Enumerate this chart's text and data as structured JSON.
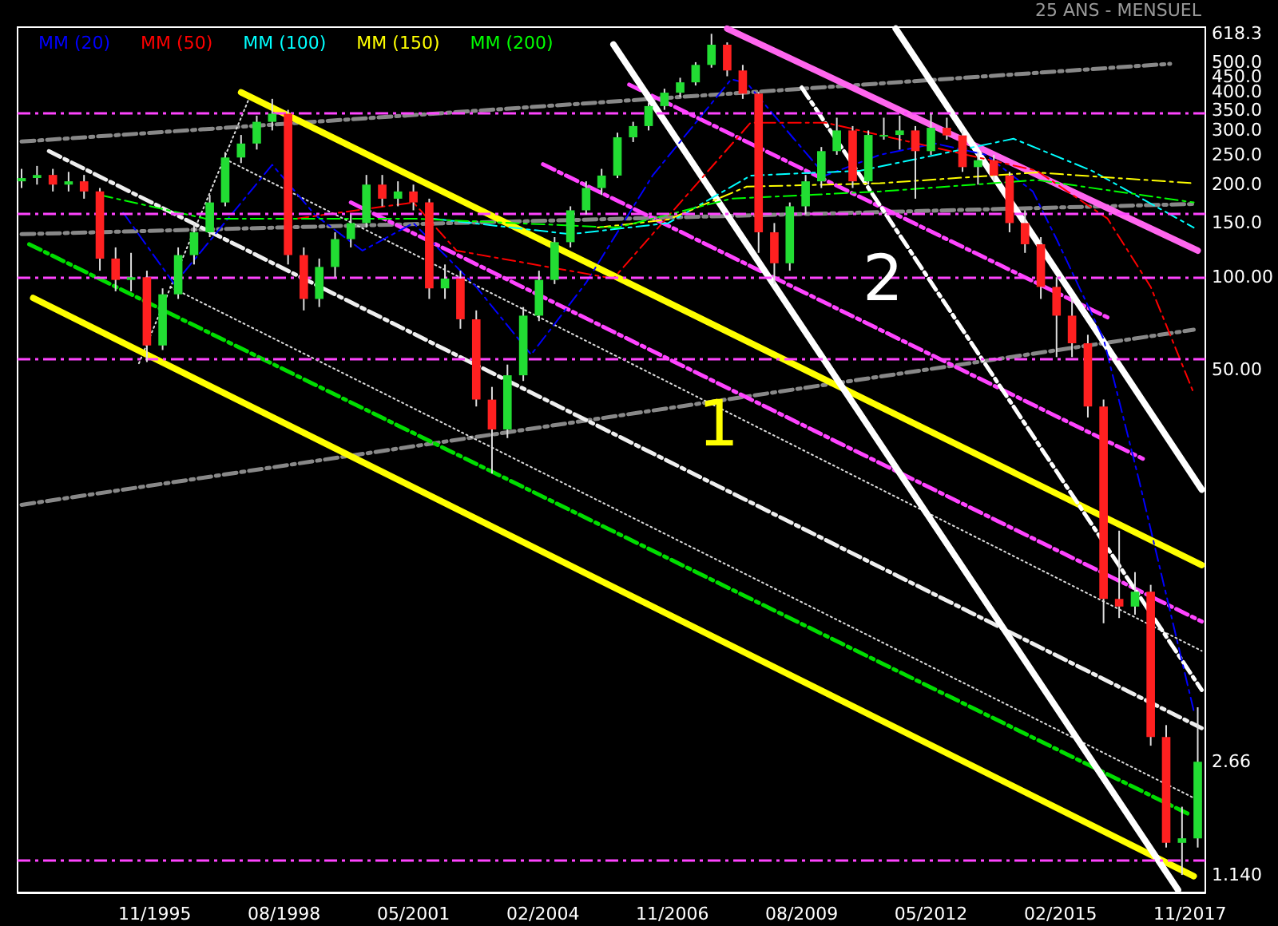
{
  "chart_data": {
    "type": "candlestick",
    "subtitle": "25 ANS - MENSUEL",
    "log": true,
    "grid": false,
    "legend": "top left",
    "marker": "none",
    "xlim": [
      "1992-12",
      "2018-03"
    ],
    "xticks": [
      {
        "value": "1995-11",
        "label": "11/1995"
      },
      {
        "value": "1998-08",
        "label": "08/1998"
      },
      {
        "value": "2001-05",
        "label": "05/2001"
      },
      {
        "value": "2004-02",
        "label": "02/2004"
      },
      {
        "value": "2006-11",
        "label": "11/2006"
      },
      {
        "value": "2009-08",
        "label": "08/2009"
      },
      {
        "value": "2012-05",
        "label": "05/2012"
      },
      {
        "value": "2015-02",
        "label": "02/2015"
      },
      {
        "value": "2017-11",
        "label": "11/2017"
      }
    ],
    "ylim": [
      1,
      650
    ],
    "yticks": [
      {
        "value": 618.3,
        "label": "618.3"
      },
      {
        "value": 500,
        "label": "500.0"
      },
      {
        "value": 450,
        "label": "450.0"
      },
      {
        "value": 400,
        "label": "400.0"
      },
      {
        "value": 350,
        "label": "350.0"
      },
      {
        "value": 300,
        "label": "300.0"
      },
      {
        "value": 250,
        "label": "250.0"
      },
      {
        "value": 200,
        "label": "200.0"
      },
      {
        "value": 150,
        "label": "150.0"
      },
      {
        "value": 100,
        "label": "100.00"
      },
      {
        "value": 50,
        "label": "50.00"
      },
      {
        "value": 2.66,
        "label": "2.66"
      },
      {
        "value": 1.14,
        "label": "1.140"
      }
    ],
    "ref_lines": [
      {
        "axis": "y",
        "value": 342,
        "color": "#ff44ff",
        "line_style": "dashed"
      },
      {
        "axis": "y",
        "value": 161,
        "color": "#ff44ff",
        "line_style": "dashed"
      },
      {
        "axis": "y",
        "value": 100,
        "color": "#ff44ff",
        "line_style": "dashed"
      },
      {
        "axis": "y",
        "value": 54.5,
        "color": "#ff44ff",
        "line_style": "dashed"
      },
      {
        "axis": "y",
        "value": 1.27,
        "color": "#ff44ff",
        "line_style": "dashed"
      }
    ],
    "annotations": [
      "1",
      "2"
    ],
    "series": [
      {
        "type": "line",
        "color": "#888888",
        "line_style": "dashed",
        "x": [
          "1993-01",
          "2017-06"
        ],
        "values": [
          276,
          494
        ]
      },
      {
        "type": "line",
        "color": "#888888",
        "line_style": "dashed",
        "x": [
          "1993-01",
          "2017-12"
        ],
        "values": [
          138,
          173
        ]
      },
      {
        "type": "line",
        "color": "#888888",
        "line_style": "dashed",
        "x": [
          "1993-01",
          "2017-12"
        ],
        "values": [
          18.2,
          67.5
        ]
      },
      {
        "type": "line",
        "color": "#dddddd",
        "line_style": "dotted",
        "x": [
          "1997-05",
          "2018-02"
        ],
        "values": [
          242,
          6.1
        ]
      },
      {
        "type": "line",
        "color": "#dddddd",
        "line_style": "dotted",
        "x": [
          "1996-03",
          "2018-02"
        ],
        "values": [
          93,
          1.97
        ]
      },
      {
        "type": "line",
        "color": "#dddddd",
        "line_style": "dotted",
        "x": [
          "1995-07",
          "1997-11"
        ],
        "values": [
          52.5,
          380
        ]
      },
      {
        "type": "line",
        "color": "#ffff00",
        "line_style": "solid",
        "x": [
          "1997-09",
          "2018-02"
        ],
        "values": [
          399,
          11.6
        ]
      },
      {
        "type": "line",
        "color": "#ffff00",
        "line_style": "solid",
        "x": [
          "1993-04",
          "2017-12"
        ],
        "values": [
          85.6,
          1.13
        ]
      },
      {
        "type": "line",
        "color": "#eeeeee",
        "line_style": "dashed",
        "x": [
          "1993-08",
          "2018-02"
        ],
        "values": [
          257,
          3.42
        ]
      },
      {
        "type": "line",
        "color": "#00dd00",
        "line_style": "dashed",
        "x": [
          "1993-03",
          "2017-11"
        ],
        "values": [
          128,
          1.79
        ]
      },
      {
        "type": "line",
        "color": "#ff44ff",
        "line_style": "dashed",
        "x": [
          "2005-12",
          "2016-03"
        ],
        "values": [
          423,
          73
        ]
      },
      {
        "type": "line",
        "color": "#ff44ff",
        "line_style": "dashed",
        "x": [
          "2004-02",
          "2016-11"
        ],
        "values": [
          233,
          25.7
        ]
      },
      {
        "type": "line",
        "color": "#ff44ff",
        "line_style": "dashed",
        "x": [
          "2000-01",
          "2018-02"
        ],
        "values": [
          175,
          7.6
        ]
      },
      {
        "type": "line",
        "color": "#ff66ee",
        "line_style": "solid",
        "x": [
          "2008-01",
          "2018-01"
        ],
        "values": [
          643,
          122
        ]
      },
      {
        "type": "line",
        "color": "#ffffff",
        "line_style": "solid",
        "x": [
          "2005-08",
          "2017-08"
        ],
        "values": [
          571,
          1.02
        ]
      },
      {
        "type": "line",
        "color": "#ffffff",
        "line_style": "solid",
        "x": [
          "2011-08",
          "2018-02"
        ],
        "values": [
          643,
          20.4
        ]
      },
      {
        "type": "line",
        "color": "#ffffff",
        "line_style": "dashed",
        "x": [
          "2009-08",
          "2018-02"
        ],
        "values": [
          414,
          4.55
        ]
      },
      {
        "name": "MM (20)",
        "type": "line",
        "color": "#0000ff",
        "line_style": "dashed",
        "x": [
          "1995-03",
          "1996-04",
          "1998-05",
          "1999-04",
          "2000-04",
          "2001-05",
          "2002-09",
          "2003-11",
          "2005-01",
          "2006-06",
          "2008-02",
          "2008-06",
          "2009-06",
          "2010-02",
          "2011-04",
          "2012-06",
          "2013-07",
          "2014-07",
          "2015-01",
          "2016-01",
          "2016-10",
          "2017-12"
        ],
        "values": [
          162,
          95,
          232,
          159,
          122,
          150,
          93,
          56,
          96,
          214,
          440,
          428,
          282,
          214,
          250,
          272,
          250,
          190,
          133,
          63,
          22,
          3.9
        ]
      },
      {
        "name": "MM (50)",
        "type": "line",
        "color": "#ff0000",
        "line_style": "dashed",
        "x": [
          "1998-11",
          "2001-05",
          "2002-04",
          "2005-08",
          "2008-07",
          "2010-02",
          "2013-02",
          "2014-08",
          "2016-02",
          "2017-01",
          "2017-12"
        ],
        "values": [
          155,
          175,
          122,
          99,
          318,
          318,
          250,
          222,
          155,
          93,
          42
        ]
      },
      {
        "name": "MM (100)",
        "type": "line",
        "color": "#00ffff",
        "line_style": "dashed",
        "x": [
          "2001-10",
          "2004-09",
          "2006-10",
          "2008-07",
          "2010-11",
          "2014-02",
          "2015-10",
          "2017-12"
        ],
        "values": [
          155,
          138,
          150,
          214,
          222,
          282,
          222,
          145
        ]
      },
      {
        "name": "MM (150)",
        "type": "line",
        "color": "#ffff00",
        "line_style": "dashed",
        "x": [
          "2005-04",
          "2006-10",
          "2008-06",
          "2011-04",
          "2014-08",
          "2017-12"
        ],
        "values": [
          145,
          154,
          197,
          202,
          219,
          202
        ]
      },
      {
        "name": "MM (200)",
        "type": "line",
        "color": "#00ff00",
        "line_style": "dashed",
        "x": [
          "1994-09",
          "1996-12",
          "2001-05",
          "2005-09",
          "2008-02",
          "2011-04",
          "2014-08",
          "2017-12"
        ],
        "values": [
          185,
          155,
          155,
          145,
          180,
          190,
          207,
          175
        ]
      },
      {
        "x": [
          "1993-01",
          "1993-05",
          "1993-09",
          "1994-01",
          "1994-05",
          "1994-09",
          "1995-01",
          "1995-05",
          "1995-09",
          "1996-01",
          "1996-05",
          "1996-09",
          "1997-01",
          "1997-05",
          "1997-09",
          "1998-01",
          "1998-05",
          "1998-09",
          "1999-01",
          "1999-05",
          "1999-09",
          "2000-01",
          "2000-05",
          "2000-09",
          "2001-01",
          "2001-05",
          "2001-09",
          "2002-01",
          "2002-05",
          "2002-09",
          "2003-01",
          "2003-05",
          "2003-09",
          "2004-01",
          "2004-05",
          "2004-09",
          "2005-01",
          "2005-05",
          "2005-09",
          "2006-01",
          "2006-05",
          "2006-09",
          "2007-01",
          "2007-05",
          "2007-09",
          "2008-01",
          "2008-05",
          "2008-09",
          "2009-01",
          "2009-05",
          "2009-09",
          "2010-01",
          "2010-05",
          "2010-09",
          "2011-01",
          "2011-05",
          "2011-09",
          "2012-01",
          "2012-05",
          "2012-09",
          "2013-01",
          "2013-05",
          "2013-09",
          "2014-01",
          "2014-05",
          "2014-09",
          "2015-01",
          "2015-05",
          "2015-09",
          "2016-01",
          "2016-05",
          "2016-09",
          "2017-01",
          "2017-05",
          "2017-09",
          "2018-01"
        ],
        "ohlc": [
          [
            205,
            225,
            195,
            210
          ],
          [
            210,
            230,
            200,
            215
          ],
          [
            215,
            225,
            190,
            200
          ],
          [
            200,
            220,
            190,
            205
          ],
          [
            205,
            215,
            180,
            190
          ],
          [
            190,
            195,
            105,
            115
          ],
          [
            115,
            125,
            90,
            98
          ],
          [
            98,
            120,
            90,
            100
          ],
          [
            100,
            105,
            53,
            60
          ],
          [
            60,
            92,
            58,
            88
          ],
          [
            88,
            125,
            85,
            118
          ],
          [
            118,
            150,
            110,
            140
          ],
          [
            140,
            185,
            135,
            175
          ],
          [
            175,
            255,
            170,
            245
          ],
          [
            245,
            290,
            235,
            272
          ],
          [
            272,
            335,
            260,
            320
          ],
          [
            320,
            380,
            300,
            340
          ],
          [
            340,
            350,
            110,
            118
          ],
          [
            118,
            125,
            78,
            85
          ],
          [
            85,
            115,
            80,
            108
          ],
          [
            108,
            140,
            100,
            133
          ],
          [
            133,
            160,
            125,
            150
          ],
          [
            150,
            215,
            145,
            200
          ],
          [
            200,
            215,
            170,
            180
          ],
          [
            180,
            205,
            170,
            190
          ],
          [
            190,
            200,
            165,
            175
          ],
          [
            175,
            180,
            85,
            92
          ],
          [
            92,
            110,
            85,
            99
          ],
          [
            99,
            105,
            68,
            73
          ],
          [
            73,
            78,
            38,
            40
          ],
          [
            40,
            44,
            23,
            32
          ],
          [
            32,
            52,
            30,
            48
          ],
          [
            48,
            80,
            46,
            75
          ],
          [
            75,
            105,
            72,
            98
          ],
          [
            98,
            135,
            95,
            130
          ],
          [
            130,
            170,
            125,
            165
          ],
          [
            165,
            205,
            160,
            195
          ],
          [
            195,
            225,
            185,
            214
          ],
          [
            214,
            295,
            210,
            285
          ],
          [
            285,
            320,
            275,
            310
          ],
          [
            310,
            370,
            300,
            360
          ],
          [
            360,
            410,
            350,
            398
          ],
          [
            398,
            445,
            385,
            430
          ],
          [
            430,
            500,
            420,
            490
          ],
          [
            490,
            618.3,
            480,
            570
          ],
          [
            570,
            580,
            450,
            470
          ],
          [
            470,
            490,
            380,
            395
          ],
          [
            395,
            400,
            120,
            140
          ],
          [
            140,
            150,
            95,
            111
          ],
          [
            111,
            175,
            105,
            170
          ],
          [
            170,
            215,
            160,
            205
          ],
          [
            205,
            265,
            195,
            257
          ],
          [
            257,
            330,
            250,
            300
          ],
          [
            300,
            310,
            195,
            205
          ],
          [
            205,
            300,
            200,
            290
          ],
          [
            290,
            330,
            280,
            290
          ],
          [
            290,
            335,
            260,
            300
          ],
          [
            300,
            310,
            180,
            257
          ],
          [
            257,
            340,
            250,
            306
          ],
          [
            306,
            330,
            280,
            289
          ],
          [
            289,
            300,
            220,
            228
          ],
          [
            228,
            255,
            200,
            240
          ],
          [
            240,
            250,
            205,
            214
          ],
          [
            214,
            220,
            140,
            150
          ],
          [
            150,
            165,
            120,
            128
          ],
          [
            128,
            135,
            85,
            93
          ],
          [
            93,
            100,
            55,
            75
          ],
          [
            75,
            85,
            55,
            61
          ],
          [
            61,
            65,
            35,
            38
          ],
          [
            38,
            40,
            7.5,
            9
          ],
          [
            9,
            15,
            7.8,
            8.5
          ],
          [
            8.5,
            11,
            8,
            9.5
          ],
          [
            9.5,
            10,
            3,
            3.2
          ],
          [
            3.2,
            3.5,
            1.4,
            1.45
          ],
          [
            1.45,
            1.9,
            1.14,
            1.5
          ],
          [
            1.5,
            4,
            1.4,
            2.66
          ]
        ]
      }
    ]
  }
}
